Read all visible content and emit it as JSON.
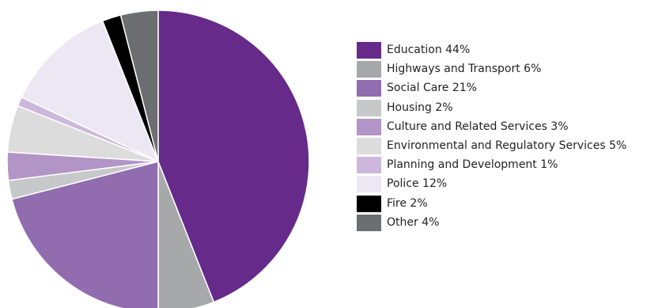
{
  "chart_data": {
    "type": "pie",
    "title": "",
    "slices": [
      {
        "label": "Education",
        "value": 44,
        "color": "#662a8a"
      },
      {
        "label": "Highways and Transport",
        "value": 6,
        "color": "#a7a8aa"
      },
      {
        "label": "Social Care",
        "value": 21,
        "color": "#916caf"
      },
      {
        "label": "Housing",
        "value": 2,
        "color": "#c7c8c9"
      },
      {
        "label": "Culture and Related Services",
        "value": 3,
        "color": "#b295c6"
      },
      {
        "label": "Environmental and Regulatory Services",
        "value": 5,
        "color": "#dcdcdd"
      },
      {
        "label": "Planning and Development",
        "value": 1,
        "color": "#cdb8dc"
      },
      {
        "label": "Police",
        "value": 12,
        "color": "#ece7f2"
      },
      {
        "label": "Fire",
        "value": 2,
        "color": "#000000"
      },
      {
        "label": "Other",
        "value": 4,
        "color": "#6d6e70"
      }
    ],
    "legend": {
      "position": "right",
      "entries": [
        "Education 44%",
        "Highways and Transport 6%",
        "Social Care 21%",
        "Housing 2%",
        "Culture and Related Services 3%",
        "Environmental and Regulatory Services 5%",
        "Planning and Development 1%",
        "Police 12%",
        "Fire 2%",
        "Other 4%"
      ]
    }
  }
}
